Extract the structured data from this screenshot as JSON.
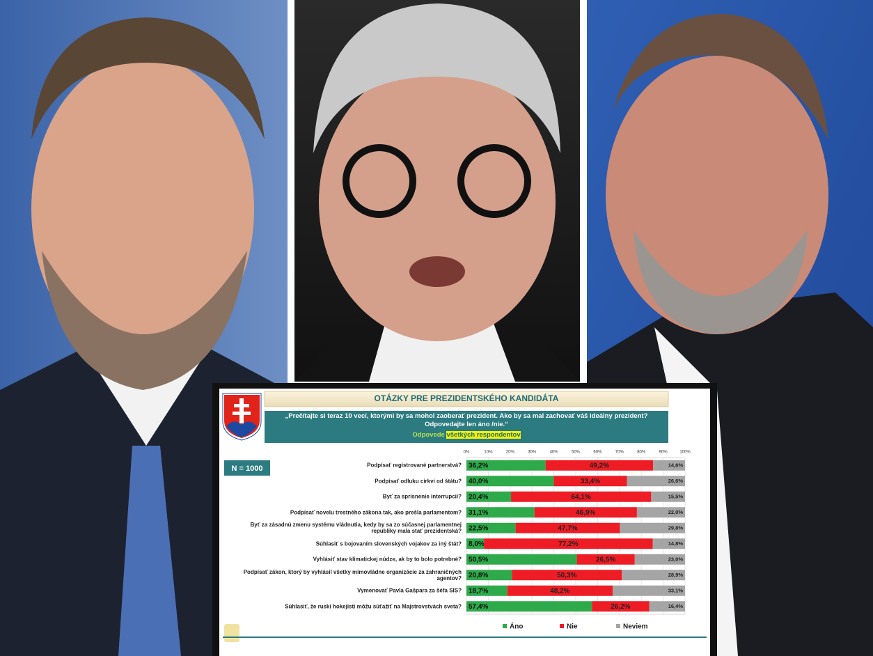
{
  "chart_data": {
    "type": "stacked-bar-horizontal",
    "title": "OTÁZKY PRE PREZIDENTSKÉHO KANDIDÁTA",
    "subtitle": "„Prečítajte si teraz 10 vecí, ktorými by sa mohol zaoberať prezident. Ako by sa mal zachovať váš ideálny prezident? Odpovedajte len áno /nie.“",
    "note": "Odpovede",
    "note_highlight": "všetkých respondentov",
    "sample": "N = 1000",
    "categories": [
      "Podpísať registrované partnerstvá?",
      "Podpísať odluku cirkvi od štátu?",
      "Byť za sprísnenie interrupcií?",
      "Podpísať novelu trestného zákona tak, ako prešla parlamentom?",
      "Byť za zásadnú zmenu systému vládnutia, kedy by sa zo súčasnej parlamentnej republiky mala stať prezidentská?",
      "Súhlasiť s bojovaním slovenských vojakov za iný štát?",
      "Vyhlásiť stav klimatickej núdze, ak by to bolo potrebné?",
      "Podpísať zákon, ktorý by vyhlásil všetky mimovládne organizácie za zahraničných agentov?",
      "Vymenovať Pavla Gašpara za šéfa SIS?",
      "Súhlasiť, že ruskí hokejisti môžu súťažiť na Majstrovstvách sveta?"
    ],
    "series": [
      {
        "name": "Áno",
        "color": "#2eaa4a",
        "values": [
          36.2,
          40.0,
          20.4,
          31.1,
          22.5,
          8.0,
          50.5,
          20.8,
          18.7,
          57.4
        ],
        "value_labels": [
          "36,2%",
          "40,0%",
          "20,4%",
          "31,1%",
          "22,5%",
          "8,0%",
          "50,5%",
          "20,8%",
          "18,7%",
          "57,4%"
        ]
      },
      {
        "name": "Nie",
        "color": "#ee1c25",
        "values": [
          49.2,
          33.4,
          64.1,
          46.9,
          47.7,
          77.2,
          26.5,
          50.3,
          48.2,
          26.2
        ],
        "value_labels": [
          "49,2%",
          "33,4%",
          "64,1%",
          "46,9%",
          "47,7%",
          "77,2%",
          "26,5%",
          "50,3%",
          "48,2%",
          "26,2%"
        ]
      },
      {
        "name": "Neviem",
        "color": "#a5a5a5",
        "values": [
          14.6,
          26.6,
          15.5,
          22.0,
          29.8,
          14.8,
          23.0,
          28.9,
          33.1,
          16.4
        ],
        "value_labels": [
          "14,6%",
          "26,6%",
          "15,5%",
          "22,0%",
          "29,8%",
          "14,8%",
          "23,0%",
          "28,9%",
          "33,1%",
          "16,4%"
        ]
      }
    ],
    "xlim": [
      0,
      100
    ],
    "xticks": [
      {
        "value": 0,
        "label": "0%"
      },
      {
        "value": 10,
        "label": "10%"
      },
      {
        "value": 20,
        "label": "20%"
      },
      {
        "value": 30,
        "label": "30%"
      },
      {
        "value": 40,
        "label": "40%"
      },
      {
        "value": 50,
        "label": "50%"
      },
      {
        "value": 60,
        "label": "60%"
      },
      {
        "value": 70,
        "label": "70%"
      },
      {
        "value": 80,
        "label": "80%"
      },
      {
        "value": 90,
        "label": "90%"
      },
      {
        "value": 100,
        "label": "100%"
      }
    ]
  }
}
